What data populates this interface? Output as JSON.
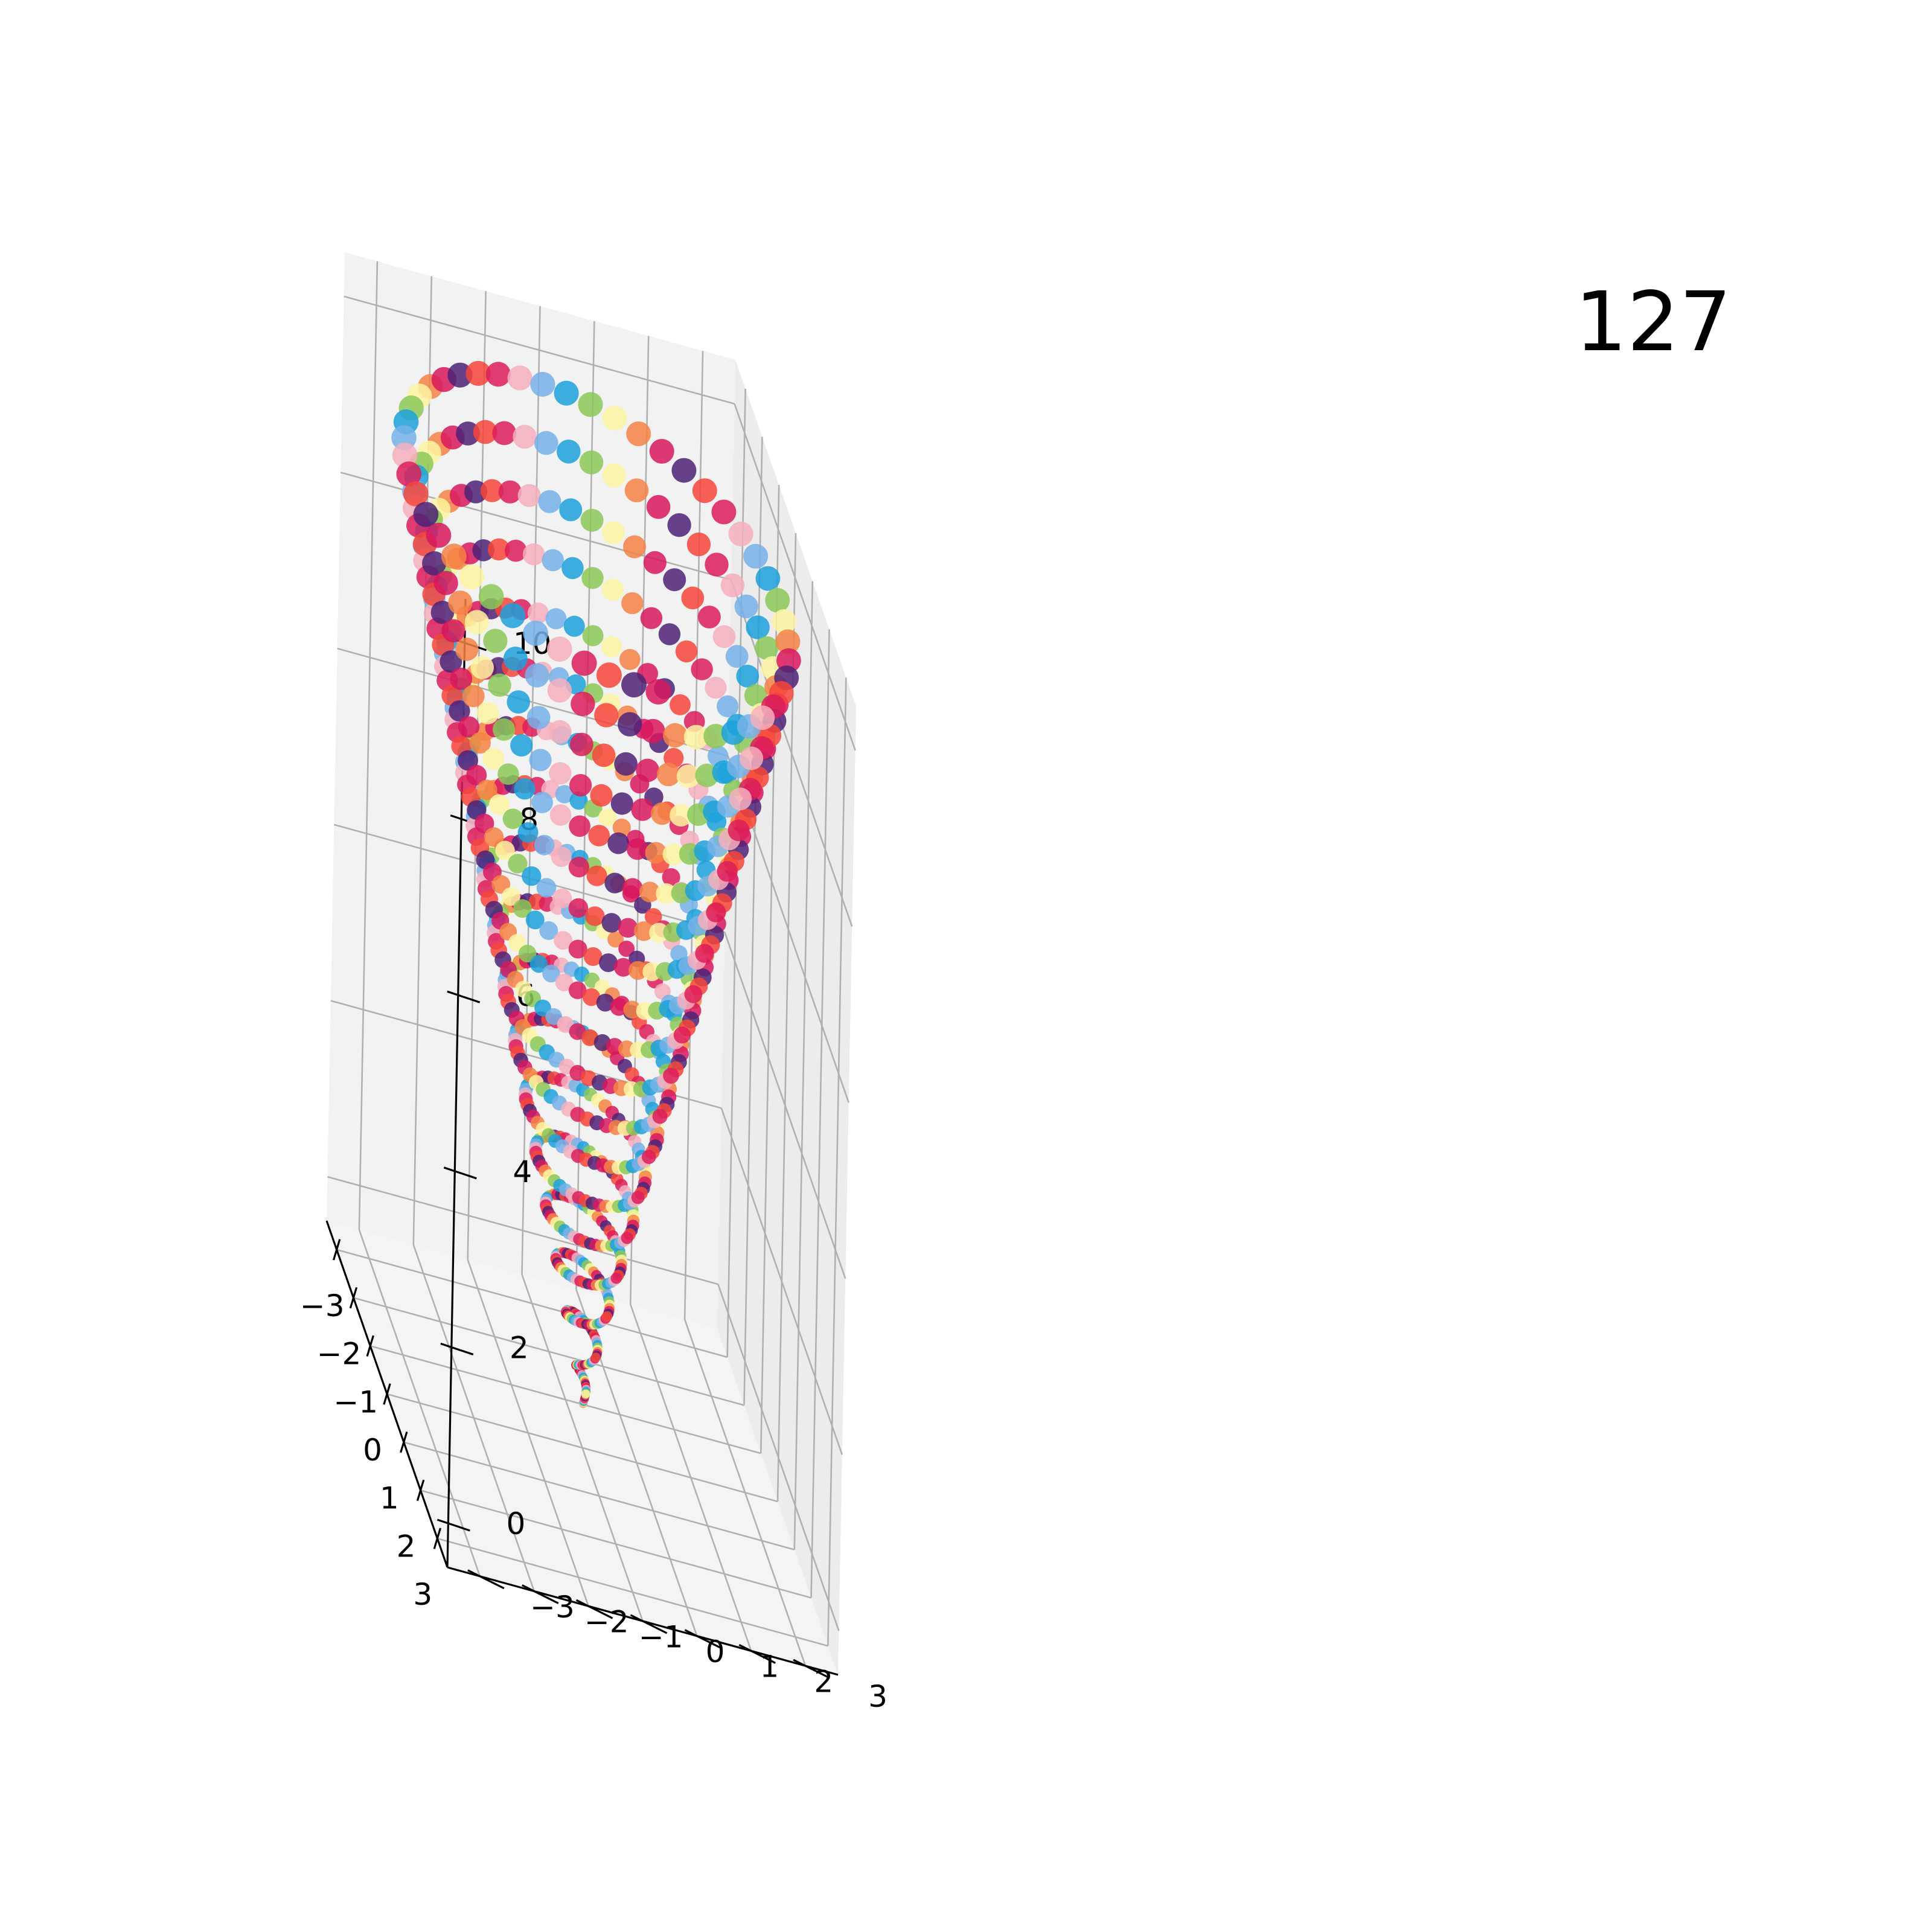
{
  "annotation": "127",
  "chart_data": {
    "type": "scatter",
    "projection": "3d",
    "title": "",
    "xlabel": "",
    "ylabel": "",
    "zlabel": "",
    "xlim": [
      -3.6,
      3.6
    ],
    "ylim": [
      -3.6,
      3.6
    ],
    "zlim": [
      -0.5,
      10.5
    ],
    "xticks": [
      "−3",
      "−2",
      "−1",
      "0",
      "1",
      "2",
      "3"
    ],
    "yticks": [
      "−3",
      "−2",
      "−1",
      "0",
      "1",
      "2",
      "3"
    ],
    "zticks": [
      "0",
      "2",
      "4",
      "6",
      "8",
      "10"
    ],
    "xtick_values": [
      -3,
      -2,
      -1,
      0,
      1,
      2,
      3
    ],
    "ytick_values": [
      -3,
      -2,
      -1,
      0,
      1,
      2,
      3
    ],
    "ztick_values": [
      0,
      2,
      4,
      6,
      8,
      10
    ],
    "grid": true,
    "series": [
      {
        "kind": "conical helix",
        "point_count": 900,
        "z_range": [
          0,
          10
        ],
        "radius_at_top": 3.5,
        "turns": 18,
        "color_cycle": [
          "#F58345",
          "#FDF4A2",
          "#8BC858",
          "#1CA1DA",
          "#75B1E8",
          "#F6AFBE",
          "#DC1D5B",
          "#F6453A",
          "#4D2277",
          "#D8175E"
        ]
      }
    ]
  }
}
